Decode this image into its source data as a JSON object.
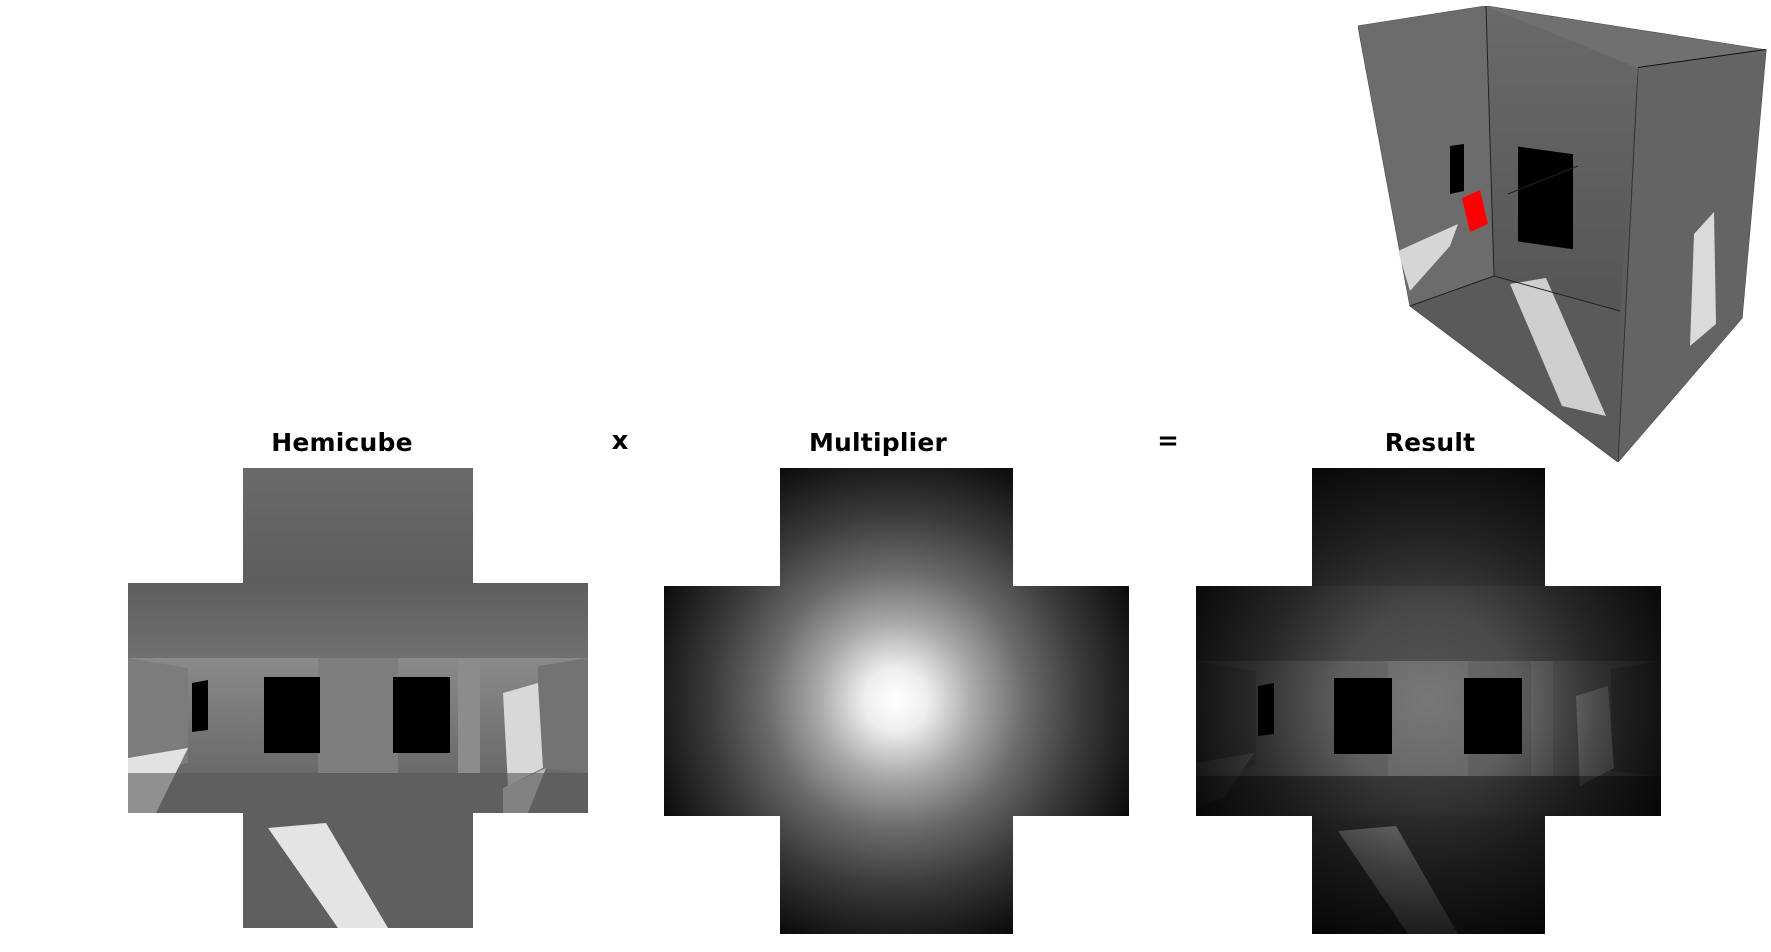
{
  "panels": [
    {
      "id": "hemicube",
      "label": "Hemicube"
    },
    {
      "id": "multiplier",
      "label": "Multiplier"
    },
    {
      "id": "result",
      "label": "Result"
    }
  ],
  "operators": {
    "times": "x",
    "equals": "="
  },
  "highlight_color": "#ff0000"
}
